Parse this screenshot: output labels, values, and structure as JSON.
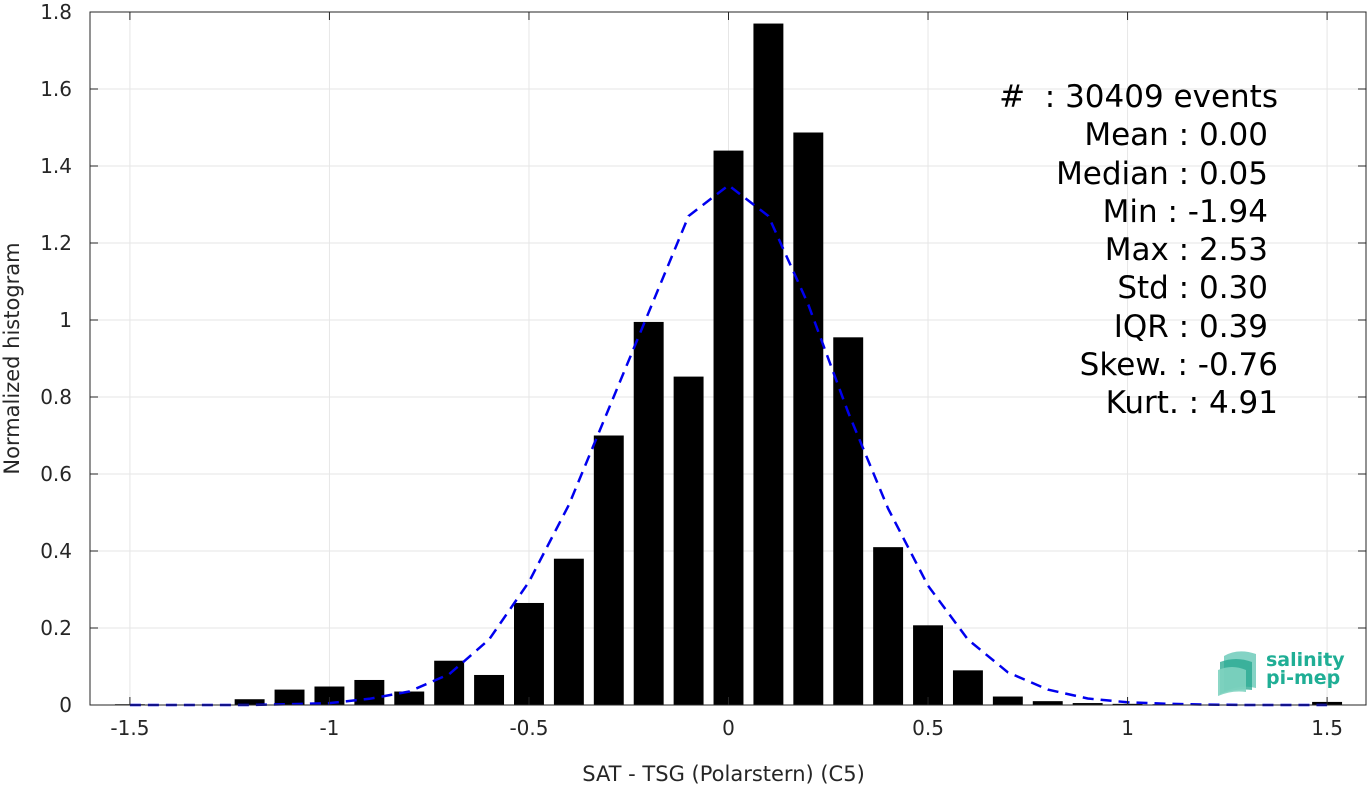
{
  "chart_data": {
    "type": "bar",
    "xlabel": "SAT - TSG (Polarstern) (C5)",
    "ylabel": "Normalized histogram",
    "xlim": [
      -1.6,
      1.6
    ],
    "ylim": [
      0,
      1.8
    ],
    "xticks": [
      -1.5,
      -1,
      -0.5,
      0,
      0.5,
      1,
      1.5
    ],
    "xtick_labels": [
      "-1.5",
      "-1",
      "-0.5",
      "0",
      "0.5",
      "1",
      "1.5"
    ],
    "yticks": [
      0,
      0.2,
      0.4,
      0.6,
      0.8,
      1,
      1.2,
      1.4,
      1.6,
      1.8
    ],
    "ytick_labels": [
      "0",
      "0.2",
      "0.4",
      "0.6",
      "0.8",
      "1",
      "1.2",
      "1.4",
      "1.6",
      "1.8"
    ],
    "grid": true,
    "bar_width": 0.075,
    "bars": {
      "x": [
        -1.5,
        -1.4,
        -1.3,
        -1.2,
        -1.1,
        -1.0,
        -0.9,
        -0.8,
        -0.7,
        -0.6,
        -0.5,
        -0.4,
        -0.3,
        -0.2,
        -0.1,
        0.0,
        0.1,
        0.2,
        0.3,
        0.4,
        0.5,
        0.6,
        0.7,
        0.8,
        0.9,
        1.0,
        1.1,
        1.2,
        1.3,
        1.4,
        1.5
      ],
      "y": [
        0.002,
        0.001,
        0.001,
        0.015,
        0.04,
        0.048,
        0.065,
        0.035,
        0.115,
        0.078,
        0.265,
        0.38,
        0.7,
        0.995,
        0.853,
        1.44,
        1.77,
        1.487,
        0.955,
        0.41,
        0.207,
        0.09,
        0.022,
        0.01,
        0.005,
        0.003,
        0.002,
        0.001,
        0.001,
        0.001,
        0.008
      ]
    },
    "fit_curve": {
      "x": [
        -1.5,
        -1.4,
        -1.3,
        -1.2,
        -1.1,
        -1.0,
        -0.9,
        -0.8,
        -0.7,
        -0.6,
        -0.5,
        -0.4,
        -0.3,
        -0.2,
        -0.1,
        0.0,
        0.1,
        0.2,
        0.3,
        0.4,
        0.5,
        0.6,
        0.7,
        0.8,
        0.9,
        1.0,
        1.1,
        1.2,
        1.3,
        1.4,
        1.5
      ],
      "y": [
        0.0,
        0.0,
        0.0,
        0.0,
        0.002,
        0.005,
        0.016,
        0.035,
        0.08,
        0.17,
        0.32,
        0.52,
        0.77,
        1.02,
        1.27,
        1.35,
        1.27,
        1.04,
        0.76,
        0.51,
        0.31,
        0.17,
        0.085,
        0.04,
        0.017,
        0.007,
        0.003,
        0.001,
        0.0,
        0.0,
        0.0
      ],
      "color": "#0000ee",
      "style": "dashed"
    },
    "bar_color": "#000000",
    "stats": [
      "#  : 30409 events",
      "Mean : 0.00",
      "Median : 0.05",
      "Min : -1.94",
      "Max : 2.53",
      "Std : 0.30",
      "IQR : 0.39",
      "Skew. : -0.76",
      "Kurt. : 4.91"
    ]
  },
  "logo": {
    "line1": "salinity",
    "line2": "pi-mep",
    "color": "#1fae95"
  }
}
